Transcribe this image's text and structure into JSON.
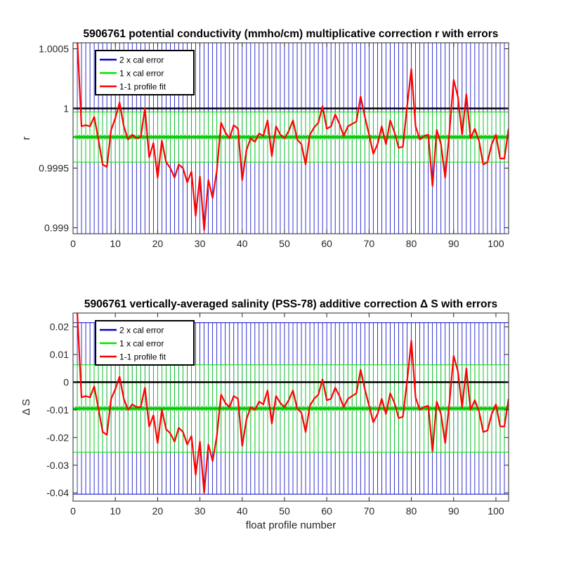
{
  "chart_data": [
    {
      "type": "line",
      "title": "5906761 potential conductivity (mmho/cm) multiplicative correction r with errors",
      "xlabel": "",
      "ylabel": "r",
      "xlim": [
        0,
        103
      ],
      "ylim": [
        0.99895,
        1.00055
      ],
      "xticks": [
        0,
        10,
        20,
        30,
        40,
        50,
        60,
        70,
        80,
        90,
        100
      ],
      "yticks": [
        {
          "value": 0.999,
          "label": "0.999"
        },
        {
          "value": 0.9995,
          "label": "0.9995"
        },
        {
          "value": 1.0,
          "label": "1"
        },
        {
          "value": 1.0005,
          "label": "1.0005"
        }
      ],
      "reference_line": 1.0,
      "mean": 0.99976,
      "err1": 0.00021,
      "err2": 0.00088,
      "grid": false,
      "legend_position": "top-left",
      "legend": [
        {
          "label": "2 x cal error",
          "color": "#0000c8"
        },
        {
          "label": "1 x cal error",
          "color": "#00e000"
        },
        {
          "label": "1-1 profile fit",
          "color": "#ff0000"
        }
      ],
      "series": [
        {
          "x": [
            1,
            2,
            3,
            4,
            5,
            6,
            7,
            8,
            9,
            10,
            11,
            12,
            13,
            14,
            15,
            16,
            17,
            18,
            19,
            20,
            21,
            22,
            23,
            24,
            25,
            26,
            27,
            28,
            29,
            30,
            31,
            32,
            33,
            34,
            35,
            36,
            37,
            38,
            39,
            40,
            41,
            42,
            43,
            44,
            45,
            46,
            47,
            48,
            49,
            50,
            51,
            52,
            53,
            54,
            55,
            56,
            57,
            58,
            59,
            60,
            61,
            62,
            63,
            64,
            65,
            66,
            67,
            68,
            69,
            70,
            71,
            72,
            73,
            74,
            75,
            76,
            77,
            78,
            79,
            80,
            81,
            82,
            83,
            84,
            85,
            86,
            87,
            88,
            89,
            90,
            91,
            92,
            93,
            94,
            95,
            96,
            97,
            98,
            99,
            100,
            101,
            102,
            103
          ],
          "y": [
            1.00058,
            0.99985,
            0.99986,
            0.99985,
            0.99993,
            0.99974,
            0.99953,
            0.99951,
            0.99982,
            0.99992,
            1.00005,
            0.99985,
            0.99974,
            0.99978,
            0.99975,
            0.99976,
            1.0,
            0.99959,
            0.99971,
            0.99942,
            0.99973,
            0.99955,
            0.9995,
            0.99942,
            0.99953,
            0.9995,
            0.99938,
            0.99947,
            0.9991,
            0.99943,
            0.99898,
            0.9994,
            0.99925,
            0.99948,
            0.99988,
            0.9998,
            0.99975,
            0.99986,
            0.99983,
            0.9994,
            0.99965,
            0.99975,
            0.99972,
            0.99979,
            0.99977,
            0.9999,
            0.9996,
            0.99985,
            0.99978,
            0.99975,
            0.99981,
            0.9999,
            0.99974,
            0.9997,
            0.99953,
            0.99978,
            0.99984,
            0.99988,
            1.00002,
            0.99983,
            0.99985,
            0.99995,
            0.99987,
            0.99977,
            0.99985,
            0.99987,
            0.99989,
            1.0001,
            0.99993,
            0.99978,
            0.99962,
            0.9997,
            0.99985,
            0.9997,
            0.9999,
            0.9998,
            0.99967,
            0.99968,
            1.00002,
            1.00033,
            0.99985,
            0.99974,
            0.99977,
            0.99978,
            0.99935,
            0.99982,
            0.9997,
            0.99942,
            0.9998,
            1.00024,
            1.0001,
            0.99978,
            1.00012,
            0.99975,
            0.99983,
            0.99973,
            0.99953,
            0.99955,
            0.9997,
            0.99978,
            0.99958,
            0.99958,
            0.99983
          ],
          "color": "#ff0000"
        }
      ]
    },
    {
      "type": "line",
      "title": "5906761 vertically-averaged salinity (PSS-78) additive correction Δ S with errors",
      "xlabel": "float profile number",
      "ylabel": "Δ S",
      "xlim": [
        0,
        103
      ],
      "ylim": [
        -0.043,
        0.025
      ],
      "xticks": [
        0,
        10,
        20,
        30,
        40,
        50,
        60,
        70,
        80,
        90,
        100
      ],
      "yticks": [
        {
          "value": -0.04,
          "label": "-0.04"
        },
        {
          "value": -0.03,
          "label": "-0.03"
        },
        {
          "value": -0.02,
          "label": "-0.02"
        },
        {
          "value": -0.01,
          "label": "-0.01"
        },
        {
          "value": 0,
          "label": "0"
        },
        {
          "value": 0.01,
          "label": "0.01"
        },
        {
          "value": 0.02,
          "label": "0.02"
        }
      ],
      "reference_line": 0,
      "mean": -0.0095,
      "err1": 0.0158,
      "err2": 0.031,
      "grid": false,
      "legend_position": "top-left",
      "legend": [
        {
          "label": "2 x cal error",
          "color": "#0000c8"
        },
        {
          "label": "1 x cal error",
          "color": "#00e000"
        },
        {
          "label": "1-1 profile fit",
          "color": "#ff0000"
        }
      ],
      "series": [
        {
          "x": [
            1,
            2,
            3,
            4,
            5,
            6,
            7,
            8,
            9,
            10,
            11,
            12,
            13,
            14,
            15,
            16,
            17,
            18,
            19,
            20,
            21,
            22,
            23,
            24,
            25,
            26,
            27,
            28,
            29,
            30,
            31,
            32,
            33,
            34,
            35,
            36,
            37,
            38,
            39,
            40,
            41,
            42,
            43,
            44,
            45,
            46,
            47,
            48,
            49,
            50,
            51,
            52,
            53,
            54,
            55,
            56,
            57,
            58,
            59,
            60,
            61,
            62,
            63,
            64,
            65,
            66,
            67,
            68,
            69,
            70,
            71,
            72,
            73,
            74,
            75,
            76,
            77,
            78,
            79,
            80,
            81,
            82,
            83,
            84,
            85,
            86,
            87,
            88,
            89,
            90,
            91,
            92,
            93,
            94,
            95,
            96,
            97,
            98,
            99,
            100,
            101,
            102,
            103
          ],
          "y": [
            0.025,
            -0.0055,
            -0.005,
            -0.0055,
            -0.0015,
            -0.0095,
            -0.018,
            -0.019,
            -0.006,
            -0.0025,
            0.002,
            -0.006,
            -0.01,
            -0.008,
            -0.009,
            -0.009,
            -0.002,
            -0.016,
            -0.012,
            -0.022,
            -0.01,
            -0.017,
            -0.0185,
            -0.0215,
            -0.0165,
            -0.018,
            -0.0225,
            -0.0195,
            -0.0335,
            -0.0215,
            -0.04,
            -0.0225,
            -0.0285,
            -0.0195,
            -0.0045,
            -0.0075,
            -0.009,
            -0.005,
            -0.006,
            -0.023,
            -0.0135,
            -0.009,
            -0.01,
            -0.007,
            -0.008,
            -0.003,
            -0.015,
            -0.005,
            -0.0075,
            -0.009,
            -0.0065,
            -0.003,
            -0.0095,
            -0.011,
            -0.018,
            -0.0085,
            -0.006,
            -0.0045,
            0.001,
            -0.0065,
            -0.006,
            -0.002,
            -0.005,
            -0.009,
            -0.006,
            -0.005,
            -0.004,
            0.0045,
            -0.0025,
            -0.0085,
            -0.0145,
            -0.0115,
            -0.006,
            -0.0115,
            -0.004,
            -0.0075,
            -0.013,
            -0.0125,
            0.0005,
            0.015,
            -0.0055,
            -0.01,
            -0.009,
            -0.0085,
            -0.025,
            -0.007,
            -0.0115,
            -0.022,
            -0.0075,
            0.0095,
            0.004,
            -0.009,
            0.005,
            -0.01,
            -0.0065,
            -0.0105,
            -0.018,
            -0.0175,
            -0.0115,
            -0.008,
            -0.016,
            -0.016,
            -0.006
          ],
          "color": "#ff0000"
        }
      ]
    }
  ]
}
